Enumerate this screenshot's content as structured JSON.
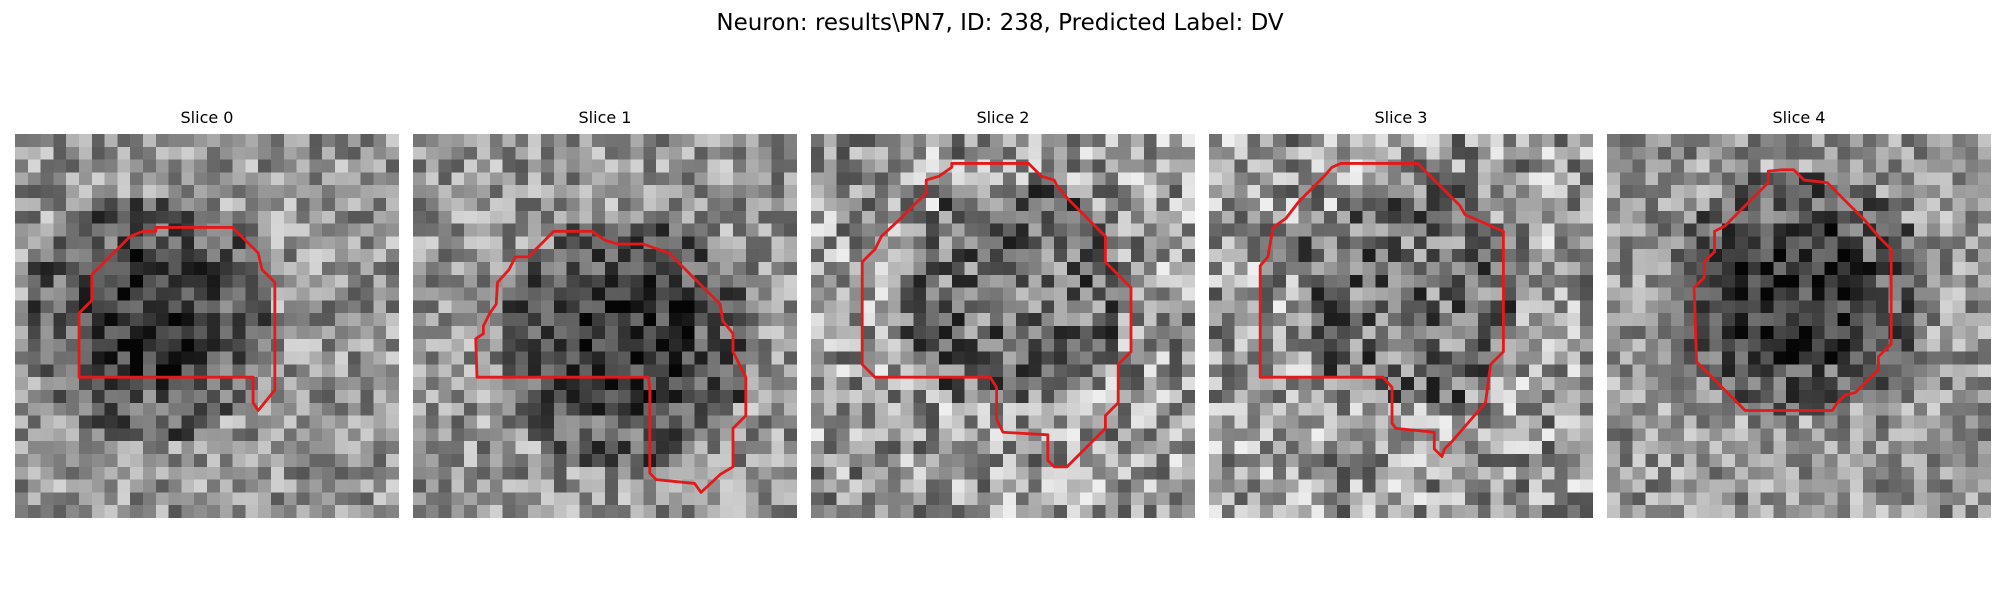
{
  "figure": {
    "title": "Neuron: results\\PN7, ID: 238, Predicted Label: DV"
  },
  "panels": [
    {
      "title": "Slice 0",
      "seed": 11,
      "contrast": "dark-core"
    },
    {
      "title": "Slice 1",
      "seed": 23,
      "contrast": "dark-core"
    },
    {
      "title": "Slice 2",
      "seed": 37,
      "contrast": "grainy"
    },
    {
      "title": "Slice 3",
      "seed": 41,
      "contrast": "grainy"
    },
    {
      "title": "Slice 4",
      "seed": 53,
      "contrast": "dark-core"
    }
  ],
  "colors": {
    "contour": "#e31a1c"
  }
}
